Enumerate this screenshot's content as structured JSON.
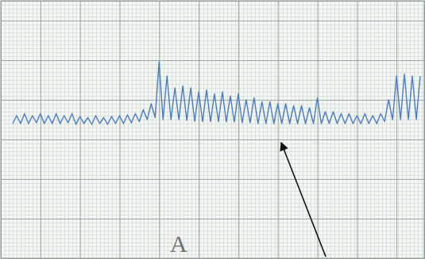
{
  "chart_data": {
    "type": "line",
    "annotation": "A",
    "x": [
      6,
      8,
      10,
      12,
      14,
      16,
      18,
      20,
      22,
      24,
      26,
      28,
      30,
      32,
      34,
      36,
      38,
      40,
      42,
      44,
      46,
      48,
      50,
      52,
      54,
      56,
      58,
      60,
      62,
      64,
      66,
      68,
      70,
      72,
      74,
      76,
      78,
      80,
      82,
      84,
      86,
      88,
      90,
      92,
      94,
      96,
      98,
      100,
      102,
      104,
      106,
      108,
      110,
      112,
      114,
      116,
      118,
      120,
      122,
      124,
      126,
      128,
      130,
      132,
      134,
      136,
      138,
      140,
      142,
      144,
      146,
      148,
      150,
      152,
      154,
      156,
      158,
      160,
      162,
      164,
      166,
      168,
      170,
      172,
      174,
      176,
      178,
      180,
      182,
      184,
      186,
      188,
      190,
      192,
      194,
      196,
      198,
      200,
      202,
      204,
      206,
      208,
      210,
      212
    ],
    "values": [
      34,
      36,
      34,
      36.5,
      34,
      36,
      34.2,
      36.5,
      34,
      36,
      34,
      36.5,
      34,
      36,
      34.2,
      36.5,
      33.8,
      35.8,
      34,
      35.5,
      33.8,
      36,
      34,
      35.5,
      33.8,
      35.8,
      34,
      36,
      34,
      36.2,
      34.2,
      36.5,
      34.5,
      37.5,
      35,
      39,
      35.5,
      49.6,
      35,
      46,
      35,
      43,
      35,
      43.5,
      34.8,
      43,
      34.6,
      42,
      34.5,
      42.5,
      34.5,
      41.5,
      34.5,
      42,
      34.4,
      41,
      34.4,
      41.5,
      34.2,
      40,
      34.2,
      40.5,
      34,
      39.5,
      34,
      39.5,
      34,
      39,
      34,
      39,
      34,
      38.5,
      34,
      38.5,
      34,
      38,
      34,
      40.5,
      34,
      37,
      34,
      37,
      34,
      36.5,
      34,
      36.5,
      34,
      36,
      34,
      36.5,
      34,
      36,
      34,
      36.5,
      34.5,
      40,
      35,
      46,
      35,
      46.5,
      35,
      46,
      35,
      46
    ],
    "color": "#4a7cc4",
    "xlim": [
      0,
      214
    ],
    "ylim": [
      0,
      65
    ],
    "xticks": [
      0,
      20,
      40,
      60,
      80,
      100,
      120,
      140,
      160,
      180,
      200
    ],
    "yticks": [
      0,
      10,
      20,
      30,
      40,
      50,
      60
    ],
    "grid": true,
    "tick_labels": false
  }
}
